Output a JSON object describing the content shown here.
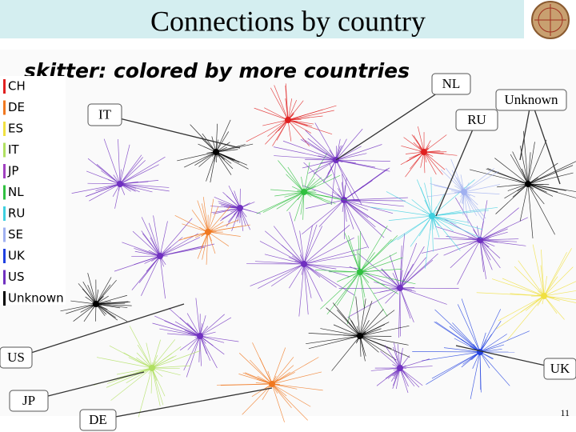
{
  "header": {
    "title": "Connections by country"
  },
  "figure": {
    "title": "skitter: colored by more countries",
    "legend": [
      {
        "label": "CH",
        "color": "#e02020"
      },
      {
        "label": "DE",
        "color": "#f07820"
      },
      {
        "label": "ES",
        "color": "#f0e040"
      },
      {
        "label": "IT",
        "color": "#b0e060"
      },
      {
        "label": "JP",
        "color": "#a040c0"
      },
      {
        "label": "NL",
        "color": "#30c040"
      },
      {
        "label": "RU",
        "color": "#40d0e0"
      },
      {
        "label": "SE",
        "color": "#a0b0f0"
      },
      {
        "label": "UK",
        "color": "#2040e0"
      },
      {
        "label": "US",
        "color": "#7030c0"
      },
      {
        "label": "Unknown",
        "color": "#000000"
      }
    ]
  },
  "callouts": [
    "NL",
    "IT",
    "RU",
    "Unknown",
    "US",
    "UK",
    "JP",
    "DE"
  ],
  "page_number": "11"
}
